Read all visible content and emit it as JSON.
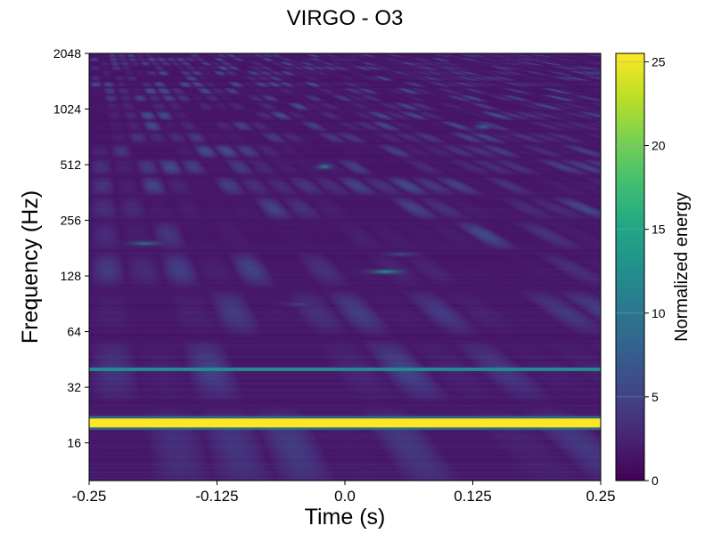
{
  "chart_data": {
    "type": "heatmap",
    "title": "VIRGO - O3",
    "xlabel": "Time (s)",
    "ylabel": "Frequency (Hz)",
    "colorbar_label": "Normalized energy",
    "colormap": "viridis",
    "xlim": [
      -0.25,
      0.25
    ],
    "ylim": [
      10,
      2048
    ],
    "yscale": "log2",
    "clim": [
      0,
      25.5
    ],
    "x_ticks": [
      -0.25,
      -0.125,
      0.0,
      0.125,
      0.25
    ],
    "x_tick_labels": [
      "-0.25",
      "-0.125",
      "0.0",
      "0.125",
      "0.25"
    ],
    "y_ticks": [
      16,
      32,
      64,
      128,
      256,
      512,
      1024,
      2048
    ],
    "y_tick_labels": [
      "16",
      "32",
      "64",
      "128",
      "256",
      "512",
      "1024",
      "2048"
    ],
    "colorbar_ticks": [
      0,
      5,
      10,
      15,
      20,
      25
    ],
    "colorbar_tick_labels": [
      "0",
      "5",
      "10",
      "15",
      "20",
      "25"
    ],
    "features": [
      {
        "kind": "band",
        "t_start": -0.25,
        "t_end": 0.25,
        "freq": 20.5,
        "energy": 25.5
      },
      {
        "kind": "band",
        "t_start": -0.25,
        "t_end": 0.25,
        "freq": 40,
        "energy": 12
      },
      {
        "kind": "blob",
        "t": 0.04,
        "freq": 135,
        "energy": 14
      },
      {
        "kind": "blob",
        "t": -0.195,
        "freq": 192,
        "energy": 10
      },
      {
        "kind": "blob",
        "t": -0.02,
        "freq": 500,
        "energy": 12
      },
      {
        "kind": "blob",
        "t": 0.135,
        "freq": 820,
        "energy": 9
      },
      {
        "kind": "blob",
        "t": 0.055,
        "freq": 168,
        "energy": 6
      },
      {
        "kind": "blob",
        "t": -0.045,
        "freq": 90,
        "energy": 5
      }
    ]
  }
}
